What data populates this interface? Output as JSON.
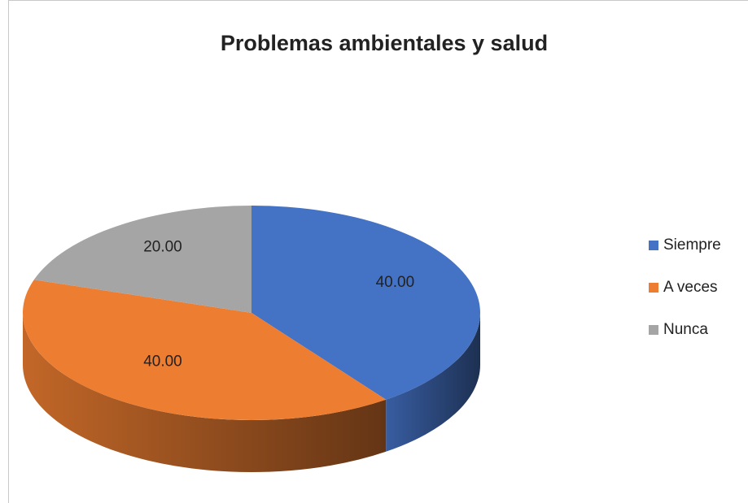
{
  "chart_data": {
    "type": "pie3d",
    "title": "Problemas ambientales y salud",
    "categories": [
      "Siempre",
      "A veces",
      "Nunca"
    ],
    "values": [
      40,
      40,
      20
    ],
    "value_labels": [
      "40.00",
      "40.00",
      "20.00"
    ],
    "colors": [
      "#4472c4",
      "#ed7d31",
      "#a5a5a5"
    ],
    "legend": "right"
  }
}
